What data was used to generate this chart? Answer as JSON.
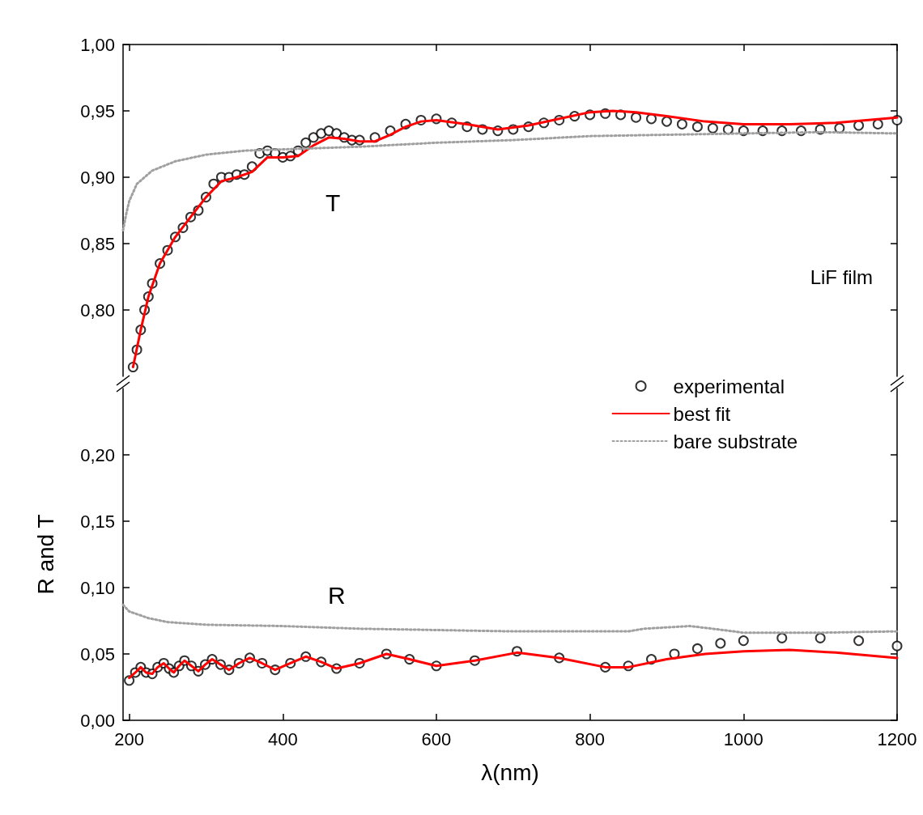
{
  "chart_data": [
    {
      "type": "line",
      "xlim": [
        192,
        1200
      ],
      "xticks": [
        200,
        400,
        600,
        800,
        1000,
        1200
      ],
      "ylim": [
        0.75,
        1.0
      ],
      "yticks": [
        {
          "value": 0.8,
          "label": "0,80"
        },
        {
          "value": 0.85,
          "label": "0,85"
        },
        {
          "value": 0.9,
          "label": "0,90"
        },
        {
          "value": 0.95,
          "label": "0,95"
        },
        {
          "value": 1.0,
          "label": "1,00"
        }
      ],
      "tick_labels": "y",
      "grid": false,
      "legend": false,
      "annotations": [
        "T",
        "LiF film"
      ],
      "series": [
        {
          "type": "scatter",
          "marker": "circle",
          "color": "#000000",
          "x": [
            205,
            210,
            215,
            220,
            225,
            230,
            240,
            250,
            260,
            270,
            280,
            290,
            300,
            310,
            320,
            330,
            340,
            350,
            360,
            370,
            380,
            390,
            400,
            410,
            420,
            430,
            440,
            450,
            460,
            470,
            480,
            490,
            500,
            520,
            540,
            560,
            580,
            600,
            620,
            640,
            660,
            680,
            700,
            720,
            740,
            760,
            780,
            800,
            820,
            840,
            860,
            880,
            900,
            920,
            940,
            960,
            980,
            1000,
            1025,
            1050,
            1075,
            1100,
            1125,
            1150,
            1175,
            1200
          ],
          "values": [
            0.757,
            0.77,
            0.785,
            0.8,
            0.81,
            0.82,
            0.835,
            0.845,
            0.855,
            0.862,
            0.87,
            0.875,
            0.885,
            0.895,
            0.9,
            0.9,
            0.902,
            0.902,
            0.908,
            0.918,
            0.92,
            0.918,
            0.915,
            0.916,
            0.92,
            0.926,
            0.93,
            0.933,
            0.935,
            0.933,
            0.93,
            0.928,
            0.928,
            0.93,
            0.935,
            0.94,
            0.943,
            0.944,
            0.941,
            0.938,
            0.936,
            0.935,
            0.936,
            0.938,
            0.941,
            0.943,
            0.946,
            0.947,
            0.948,
            0.947,
            0.945,
            0.944,
            0.942,
            0.94,
            0.938,
            0.937,
            0.936,
            0.935,
            0.935,
            0.935,
            0.935,
            0.936,
            0.937,
            0.939,
            0.94,
            0.943
          ]
        },
        {
          "color": "#ff0000",
          "x": [
            205,
            215,
            225,
            240,
            260,
            280,
            300,
            320,
            340,
            360,
            380,
            400,
            420,
            440,
            460,
            480,
            500,
            520,
            540,
            560,
            580,
            600,
            640,
            680,
            720,
            760,
            800,
            830,
            860,
            900,
            950,
            1000,
            1060,
            1120,
            1200
          ],
          "values": [
            0.757,
            0.785,
            0.81,
            0.835,
            0.855,
            0.87,
            0.885,
            0.897,
            0.9,
            0.904,
            0.915,
            0.915,
            0.916,
            0.924,
            0.93,
            0.929,
            0.927,
            0.927,
            0.932,
            0.938,
            0.942,
            0.943,
            0.94,
            0.936,
            0.939,
            0.944,
            0.949,
            0.95,
            0.949,
            0.946,
            0.942,
            0.94,
            0.94,
            0.941,
            0.945
          ]
        },
        {
          "line_style": "dotted",
          "color": "#a0a0a0",
          "x": [
            192,
            196,
            200,
            210,
            230,
            260,
            300,
            350,
            400,
            500,
            600,
            700,
            800,
            900,
            1000,
            1100,
            1200
          ],
          "values": [
            0.86,
            0.872,
            0.882,
            0.895,
            0.905,
            0.912,
            0.917,
            0.92,
            0.921,
            0.923,
            0.926,
            0.928,
            0.931,
            0.932,
            0.933,
            0.934,
            0.933
          ]
        }
      ]
    },
    {
      "type": "line",
      "xlim": [
        192,
        1200
      ],
      "xticks": [
        200,
        400,
        600,
        800,
        1000,
        1200
      ],
      "ylim": [
        0,
        0.25
      ],
      "yticks": [
        {
          "value": 0,
          "label": "0,00"
        },
        {
          "value": 0.05,
          "label": "0,05"
        },
        {
          "value": 0.1,
          "label": "0,10"
        },
        {
          "value": 0.15,
          "label": "0,15"
        },
        {
          "value": 0.2,
          "label": "0,20"
        }
      ],
      "xlabel": "λ(nm)",
      "ylabel": "R and T",
      "grid": false,
      "legend": "top right",
      "annotations": [
        "R"
      ],
      "series": [
        {
          "name": "experimental",
          "type": "scatter",
          "marker": "circle",
          "color": "#000000",
          "x": [
            200,
            208,
            215,
            222,
            230,
            237,
            245,
            252,
            258,
            265,
            272,
            281,
            290,
            299,
            308,
            319,
            330,
            343,
            357,
            373,
            390,
            410,
            430,
            450,
            470,
            500,
            535,
            565,
            600,
            650,
            705,
            760,
            820,
            850,
            880,
            910,
            940,
            970,
            1000,
            1050,
            1100,
            1150,
            1200
          ],
          "values": [
            0.03,
            0.036,
            0.04,
            0.036,
            0.035,
            0.04,
            0.043,
            0.039,
            0.036,
            0.041,
            0.045,
            0.041,
            0.037,
            0.042,
            0.046,
            0.042,
            0.038,
            0.043,
            0.047,
            0.043,
            0.038,
            0.043,
            0.048,
            0.044,
            0.039,
            0.043,
            0.05,
            0.046,
            0.041,
            0.045,
            0.052,
            0.047,
            0.04,
            0.041,
            0.046,
            0.05,
            0.054,
            0.058,
            0.06,
            0.062,
            0.062,
            0.06,
            0.056
          ]
        },
        {
          "name": "best fit",
          "color": "#ff0000",
          "x": [
            200,
            208,
            215,
            222,
            230,
            237,
            245,
            252,
            258,
            265,
            272,
            281,
            290,
            299,
            308,
            319,
            330,
            343,
            357,
            373,
            390,
            410,
            430,
            450,
            470,
            500,
            535,
            565,
            600,
            650,
            705,
            760,
            820,
            850,
            900,
            950,
            1000,
            1060,
            1120,
            1200
          ],
          "values": [
            0.032,
            0.036,
            0.04,
            0.036,
            0.035,
            0.04,
            0.043,
            0.039,
            0.036,
            0.041,
            0.045,
            0.041,
            0.037,
            0.042,
            0.046,
            0.042,
            0.038,
            0.043,
            0.047,
            0.043,
            0.038,
            0.043,
            0.048,
            0.044,
            0.039,
            0.043,
            0.05,
            0.046,
            0.041,
            0.045,
            0.051,
            0.047,
            0.04,
            0.04,
            0.046,
            0.05,
            0.052,
            0.053,
            0.051,
            0.047
          ]
        },
        {
          "name": "bare substrate",
          "line_style": "dotted",
          "color": "#a0a0a0",
          "x": [
            192,
            200,
            225,
            250,
            300,
            400,
            500,
            600,
            700,
            800,
            850,
            870,
            900,
            930,
            960,
            1000,
            1100,
            1200
          ],
          "values": [
            0.087,
            0.082,
            0.077,
            0.074,
            0.072,
            0.071,
            0.069,
            0.068,
            0.067,
            0.067,
            0.067,
            0.069,
            0.07,
            0.071,
            0.069,
            0.066,
            0.066,
            0.067
          ]
        }
      ]
    }
  ]
}
